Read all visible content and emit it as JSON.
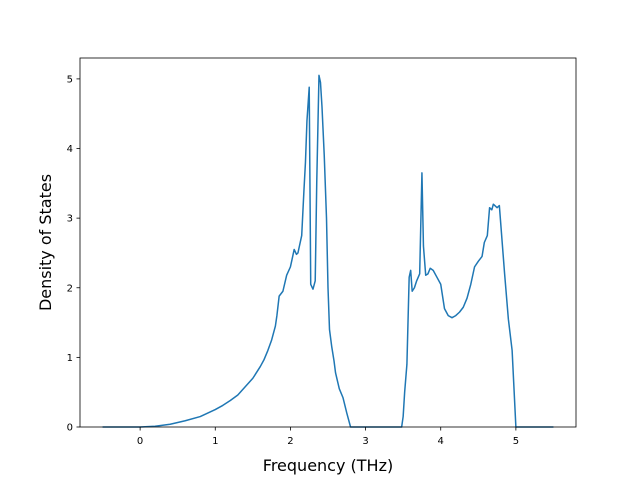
{
  "chart_data": {
    "type": "line",
    "title": "",
    "xlabel": "Frequency (THz)",
    "ylabel": "Density of States",
    "xlim": [
      -0.8,
      5.8
    ],
    "ylim": [
      0,
      5.3
    ],
    "xticks": [
      0,
      1,
      2,
      3,
      4,
      5
    ],
    "yticks": [
      0,
      1,
      2,
      3,
      4,
      5
    ],
    "grid": false,
    "legend": "none",
    "colors": {
      "line": "#1f77b4",
      "axes": "#000000",
      "background": "#ffffff"
    },
    "series": [
      {
        "x": [
          -0.5,
          0.0,
          0.2,
          0.4,
          0.6,
          0.8,
          1.0,
          1.1,
          1.2,
          1.3,
          1.4,
          1.5,
          1.6,
          1.65,
          1.7,
          1.75,
          1.8,
          1.82,
          1.85,
          1.9,
          1.95,
          2.0,
          2.02,
          2.05,
          2.08,
          2.1,
          2.12,
          2.15,
          2.18,
          2.2,
          2.22,
          2.25,
          2.27,
          2.3,
          2.33,
          2.35,
          2.38,
          2.4,
          2.42,
          2.45,
          2.48,
          2.5,
          2.52,
          2.55,
          2.58,
          2.6,
          2.65,
          2.7,
          2.75,
          2.8,
          3.0,
          3.2,
          3.4,
          3.48,
          3.5,
          3.52,
          3.55,
          3.58,
          3.6,
          3.62,
          3.65,
          3.68,
          3.72,
          3.75,
          3.77,
          3.8,
          3.83,
          3.86,
          3.9,
          3.95,
          4.0,
          4.05,
          4.1,
          4.15,
          4.2,
          4.25,
          4.3,
          4.35,
          4.4,
          4.45,
          4.5,
          4.55,
          4.58,
          4.62,
          4.65,
          4.68,
          4.7,
          4.72,
          4.75,
          4.78,
          4.8,
          4.85,
          4.9,
          4.95,
          5.0,
          5.1,
          5.3,
          5.5
        ],
        "y": [
          0.0,
          0.0,
          0.01,
          0.04,
          0.09,
          0.15,
          0.25,
          0.31,
          0.38,
          0.46,
          0.58,
          0.7,
          0.87,
          0.97,
          1.1,
          1.25,
          1.45,
          1.6,
          1.88,
          1.95,
          2.18,
          2.3,
          2.4,
          2.55,
          2.48,
          2.5,
          2.6,
          2.75,
          3.4,
          3.8,
          4.4,
          4.88,
          2.05,
          1.98,
          2.1,
          3.5,
          5.05,
          4.95,
          4.6,
          3.9,
          3.0,
          2.0,
          1.4,
          1.15,
          0.95,
          0.78,
          0.55,
          0.42,
          0.2,
          0.0,
          0.0,
          0.0,
          0.0,
          0.0,
          0.15,
          0.5,
          0.9,
          2.15,
          2.25,
          1.95,
          2.0,
          2.1,
          2.2,
          3.65,
          2.6,
          2.18,
          2.2,
          2.28,
          2.25,
          2.15,
          2.05,
          1.7,
          1.6,
          1.57,
          1.6,
          1.65,
          1.72,
          1.85,
          2.05,
          2.3,
          2.38,
          2.45,
          2.65,
          2.75,
          3.15,
          3.12,
          3.2,
          3.18,
          3.15,
          3.18,
          2.9,
          2.2,
          1.55,
          1.1,
          0.0,
          0.0,
          0.0,
          0.0
        ]
      }
    ]
  }
}
